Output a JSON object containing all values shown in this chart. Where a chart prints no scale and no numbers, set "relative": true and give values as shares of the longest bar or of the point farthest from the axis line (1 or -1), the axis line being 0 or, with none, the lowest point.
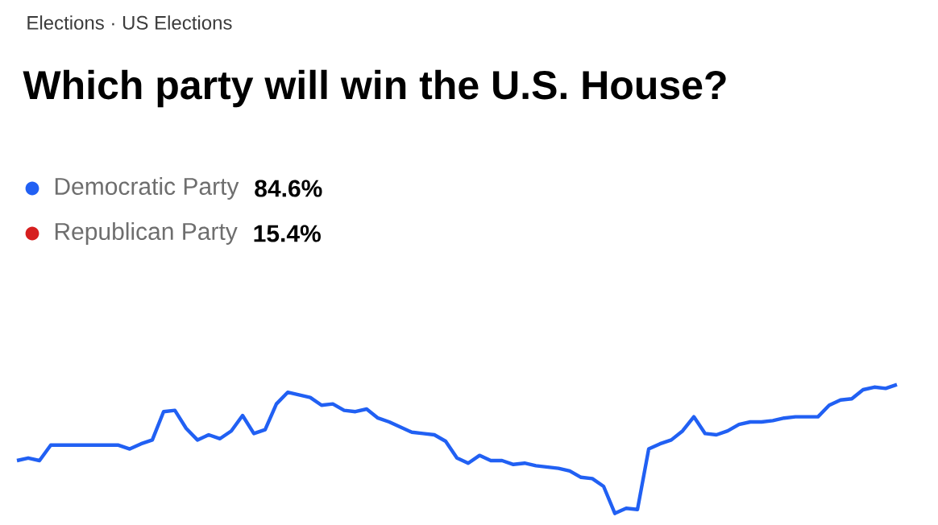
{
  "chart_data": {
    "type": "line",
    "subtitle": "Elections · US Elections",
    "title": "Which party will win the U.S. House?",
    "relative": true,
    "legend": "top left",
    "marker": "none",
    "line_style": "solid",
    "annotations": [
      "84.6%",
      "15.4%"
    ],
    "categories": [
      null,
      null,
      null,
      null,
      null,
      null,
      null,
      null,
      null,
      null,
      null,
      null,
      null,
      null,
      null,
      null,
      null,
      null,
      null,
      null,
      null,
      null,
      null,
      null,
      null,
      null,
      null,
      null,
      null,
      null,
      null,
      null,
      null,
      null,
      null,
      null,
      null,
      null,
      null,
      null,
      null,
      null,
      null,
      null,
      null,
      null,
      null,
      null,
      null,
      null,
      null,
      null,
      null,
      null,
      null,
      null,
      null,
      null,
      null,
      null,
      null,
      null,
      null,
      null,
      null,
      null,
      null,
      null,
      null,
      null,
      null,
      null,
      null,
      null,
      null,
      null,
      null,
      null,
      null
    ],
    "series": [
      {
        "name": "Democratic Party",
        "color": "#2160f3",
        "values": [
          0.41,
          0.43,
          0.41,
          0.53,
          0.53,
          0.53,
          0.53,
          0.53,
          0.53,
          0.53,
          0.5,
          0.54,
          0.57,
          0.79,
          0.8,
          0.66,
          0.57,
          0.61,
          0.58,
          0.64,
          0.76,
          0.62,
          0.65,
          0.85,
          0.94,
          0.92,
          0.9,
          0.84,
          0.85,
          0.8,
          0.79,
          0.81,
          0.74,
          0.71,
          0.67,
          0.63,
          0.62,
          0.61,
          0.56,
          0.43,
          0.39,
          0.45,
          0.41,
          0.41,
          0.38,
          0.39,
          0.37,
          0.36,
          0.35,
          0.33,
          0.28,
          0.27,
          0.21,
          0.0,
          0.04,
          0.03,
          0.5,
          0.54,
          0.57,
          0.64,
          0.75,
          0.62,
          0.61,
          0.64,
          0.69,
          0.71,
          0.71,
          0.72,
          0.74,
          0.75,
          0.75,
          0.75,
          0.84,
          0.88,
          0.89,
          0.96,
          0.98,
          0.97,
          1.0
        ]
      },
      {
        "name": "Republican Party",
        "color": "#d61f1f",
        "values": [
          null,
          null,
          null,
          null,
          null,
          null,
          null,
          null,
          null,
          null,
          null,
          null,
          null,
          null,
          null,
          null,
          null,
          null,
          null,
          null,
          null,
          null,
          null,
          null,
          null,
          null,
          null,
          null,
          null,
          null,
          null,
          null,
          null,
          null,
          null,
          null,
          null,
          null,
          null,
          null,
          null,
          null,
          null,
          null,
          null,
          null,
          null,
          null,
          null,
          null,
          null,
          null,
          null,
          null,
          null,
          null,
          null,
          null,
          null,
          null,
          null,
          null,
          null,
          null,
          null,
          null,
          null,
          null,
          null,
          null,
          null,
          null,
          null,
          null,
          null,
          null,
          null,
          null,
          null
        ]
      }
    ]
  }
}
